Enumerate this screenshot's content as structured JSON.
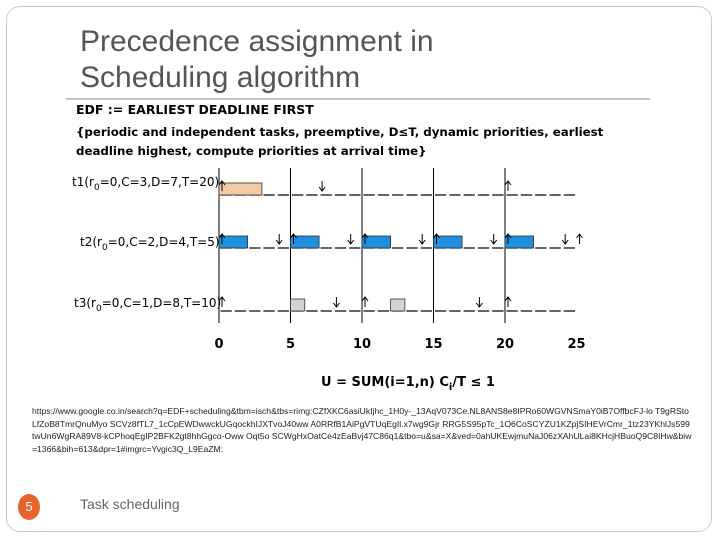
{
  "slide": {
    "title_line1": "Precedence assignment in",
    "title_line2": "Scheduling algorithm",
    "footer": "Task scheduling",
    "page_number": "5",
    "url": "https://www.google.co.in/search?q=EDF+scheduling&tbm=isch&tbs=rimg:CZfXKC6asiUkIjhc_1H0y-_13AqV073Ce.NL8ANS8e8IPRo60WGVNSmaY0iB7OffbcFJ-lo T9gRStoLfZoB8TmrQnuMyo SCVz8fTL7_1cCpEWDwwckUGqockhIJXTvoJ40ww A0RRfB1AiPgVTUqEgIl.x7wg9Gjr RRG5S95pTc_1O6CoSCYZU1KZpjSIHEVrCmr_1tz23YKhlJs599twUn6WgRA89V8-kCPhoqEgIP2BFK2gt8hhGgco-Oww Oqt5o SCWgHxOatCe4zEaBvj47C86q1&tbo=u&sa=X&ved=0ahUKEwjmuNaJ06zXAhULai8KHcjHBuoQ9C8IHw&biw=1366&bih=613&dpr=1#imgrc=Yvgic3Q_L9EaZM:"
  },
  "figure": {
    "heading": "EDF := EARLIEST DEADLINE FIRST",
    "desc_line1": "{periodic and independent tasks, preemptive, D≤T, dynamic priorities, earliest",
    "desc_line2": "deadline highest, compute priorities at arrival time}",
    "tasks": [
      {
        "label": "t1(r0=0,C=3,D=7,T=20)",
        "name": "t1",
        "params": "=0,C=3,D=7,T=20)",
        "prefix": "t1(r",
        "sub": "0"
      },
      {
        "label": "t2(r0=0,C=2,D=4,T=5)",
        "name": "t2",
        "params": "=0,C=2,D=4,T=5)",
        "prefix": "t2(r",
        "sub": "0"
      },
      {
        "label": "t3(r0=0,C=1,D=8,T=10)",
        "name": "t3",
        "params": "=0,C=1,D=8,T=10)",
        "prefix": "t3(r",
        "sub": "0"
      }
    ],
    "axis_ticks": [
      "0",
      "5",
      "10",
      "15",
      "20",
      "25"
    ],
    "formula": "U = SUM(i=1,n) Ci/T ≤ 1",
    "formula_main": "U = SUM(i=1,n) C",
    "formula_sub": "i",
    "formula_rest": "/T  ≤ 1",
    "colors": {
      "t1": "#f4c9a4",
      "t2": "#1f8fe0",
      "t3": "#d3d3d3"
    }
  }
}
